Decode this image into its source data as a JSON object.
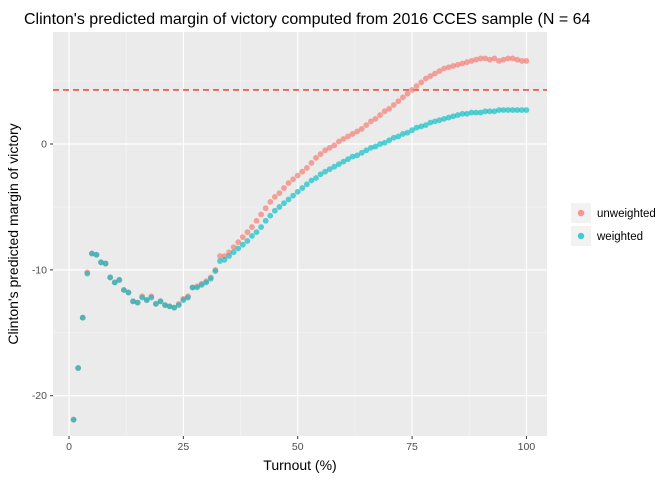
{
  "chart_data": {
    "type": "scatter",
    "title": "Clinton's predicted margin of victory computed from 2016 CCES sample (N = 64",
    "xlabel": "Turnout (%)",
    "ylabel": "Clinton's predicted margin of victory",
    "xlim": [
      -3.5,
      104.5
    ],
    "ylim": [
      -23.2,
      8.9
    ],
    "x_ticks": [
      0,
      25,
      50,
      75,
      100
    ],
    "x_tick_labels": [
      "0",
      "25",
      "50",
      "75",
      "100"
    ],
    "y_ticks": [
      -20,
      -10,
      0
    ],
    "y_tick_labels": [
      "-20",
      "-10",
      "0"
    ],
    "grid": true,
    "reference_line": {
      "y": 4.3,
      "style": "dashed",
      "color": "#e8372a"
    },
    "legend": {
      "position": "right"
    },
    "x": [
      1,
      2,
      3,
      4,
      5,
      6,
      7,
      8,
      9,
      10,
      11,
      12,
      13,
      14,
      15,
      16,
      17,
      18,
      19,
      20,
      21,
      22,
      23,
      24,
      25,
      26,
      27,
      28,
      29,
      30,
      31,
      32,
      33,
      34,
      35,
      36,
      37,
      38,
      39,
      40,
      41,
      42,
      43,
      44,
      45,
      46,
      47,
      48,
      49,
      50,
      51,
      52,
      53,
      54,
      55,
      56,
      57,
      58,
      59,
      60,
      61,
      62,
      63,
      64,
      65,
      66,
      67,
      68,
      69,
      70,
      71,
      72,
      73,
      74,
      75,
      76,
      77,
      78,
      79,
      80,
      81,
      82,
      83,
      84,
      85,
      86,
      87,
      88,
      89,
      90,
      91,
      92,
      93,
      94,
      95,
      96,
      97,
      98,
      99,
      100
    ],
    "series": [
      {
        "name": "unweighted",
        "color": "#f8766d",
        "values": [
          -21.9,
          -17.8,
          -13.8,
          -10.2,
          -8.7,
          -8.8,
          -9.4,
          -9.5,
          -10.6,
          -11.0,
          -10.8,
          -11.6,
          -11.8,
          -12.5,
          -12.6,
          -12.1,
          -12.4,
          -12.1,
          -12.7,
          -12.5,
          -12.8,
          -12.9,
          -13.0,
          -12.7,
          -12.3,
          -12.1,
          -11.4,
          -11.3,
          -11.1,
          -10.9,
          -10.6,
          -10.0,
          -8.9,
          -8.9,
          -8.6,
          -8.2,
          -7.8,
          -7.4,
          -7.0,
          -6.6,
          -6.1,
          -5.6,
          -5.1,
          -4.6,
          -4.2,
          -3.9,
          -3.5,
          -3.1,
          -2.8,
          -2.5,
          -2.2,
          -1.9,
          -1.5,
          -1.1,
          -0.8,
          -0.5,
          -0.3,
          -0.1,
          0.2,
          0.4,
          0.6,
          0.8,
          1.0,
          1.2,
          1.5,
          1.8,
          2.0,
          2.3,
          2.6,
          2.8,
          3.1,
          3.4,
          3.7,
          4.0,
          4.3,
          4.6,
          4.9,
          5.2,
          5.4,
          5.6,
          5.8,
          6.0,
          6.1,
          6.2,
          6.3,
          6.4,
          6.5,
          6.6,
          6.7,
          6.8,
          6.8,
          6.7,
          6.8,
          6.6,
          6.7,
          6.8,
          6.8,
          6.7,
          6.6,
          6.6
        ]
      },
      {
        "name": "weighted",
        "color": "#00bfc4",
        "values": [
          -21.9,
          -17.8,
          -13.8,
          -10.3,
          -8.7,
          -8.8,
          -9.4,
          -9.5,
          -10.6,
          -11.0,
          -10.8,
          -11.6,
          -11.8,
          -12.5,
          -12.6,
          -12.2,
          -12.4,
          -12.2,
          -12.7,
          -12.5,
          -12.8,
          -12.9,
          -13.0,
          -12.8,
          -12.4,
          -12.2,
          -11.4,
          -11.4,
          -11.2,
          -11.0,
          -10.7,
          -10.1,
          -9.3,
          -9.2,
          -8.9,
          -8.6,
          -8.3,
          -8.0,
          -7.7,
          -7.3,
          -7.0,
          -6.6,
          -6.1,
          -5.7,
          -5.3,
          -5.0,
          -4.7,
          -4.4,
          -4.1,
          -3.8,
          -3.5,
          -3.2,
          -2.9,
          -2.7,
          -2.4,
          -2.2,
          -2.0,
          -1.8,
          -1.6,
          -1.4,
          -1.2,
          -1.0,
          -0.9,
          -0.7,
          -0.5,
          -0.3,
          -0.2,
          0.0,
          0.1,
          0.3,
          0.5,
          0.6,
          0.8,
          0.9,
          1.1,
          1.3,
          1.4,
          1.5,
          1.7,
          1.8,
          1.9,
          2.0,
          2.1,
          2.2,
          2.3,
          2.4,
          2.4,
          2.5,
          2.5,
          2.5,
          2.6,
          2.6,
          2.6,
          2.7,
          2.7,
          2.7,
          2.7,
          2.7,
          2.7,
          2.7
        ]
      }
    ]
  }
}
